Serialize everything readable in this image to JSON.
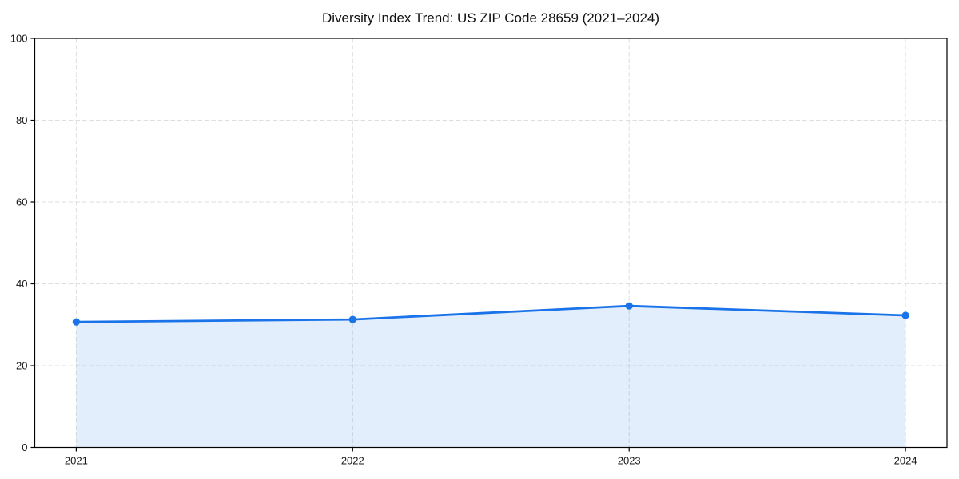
{
  "chart_data": {
    "type": "line",
    "subtype": "area-filled-line-with-markers",
    "title": "Diversity Index Trend: US ZIP Code 28659 (2021–2024)",
    "xlabel": "",
    "ylabel": "",
    "x": [
      2021,
      2022,
      2023,
      2024
    ],
    "series": [
      {
        "name": "Diversity Index",
        "values": [
          30.7,
          31.3,
          34.6,
          32.3
        ]
      }
    ],
    "ylim": [
      0,
      100
    ],
    "yticks": [
      0,
      20,
      40,
      60,
      80,
      100
    ],
    "xtick_labels": [
      "2021",
      "2022",
      "2023",
      "2024"
    ],
    "grid": true,
    "grid_style": "dashed",
    "legend_position": "none",
    "line_color": "#1a73e8",
    "marker_color": "#1a73e8",
    "fill_color": "#1a73e8",
    "fill_opacity": 0.12,
    "grid_color": "#dedede",
    "spine_color": "#000000",
    "background_color": "#ffffff"
  }
}
